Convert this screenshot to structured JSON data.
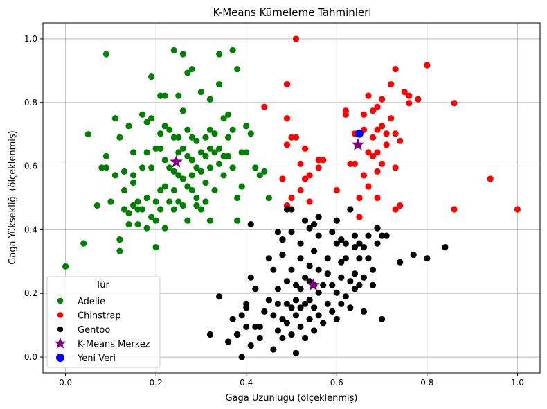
{
  "chart_data": {
    "type": "scatter",
    "title": "K-Means Kümeleme Tahminleri",
    "xlabel": "Gaga Uzunluğu (ölçeklenmiş)",
    "ylabel": "Gaga Yüksekliği (ölçeklenmiş)",
    "xlim": [
      -0.05,
      1.05
    ],
    "ylim": [
      -0.05,
      1.05
    ],
    "xticks": [
      "0.0",
      "0.2",
      "0.4",
      "0.6",
      "0.8",
      "1.0"
    ],
    "yticks": [
      "0.0",
      "0.2",
      "0.4",
      "0.6",
      "0.8",
      "1.0"
    ],
    "grid": true,
    "legend": {
      "title": "Tür",
      "placement": "lower-left"
    },
    "series": [
      {
        "name": "Adelie",
        "color": "#008000",
        "marker": "circle",
        "points": [
          [
            0.0,
            0.285
          ],
          [
            0.04,
            0.357
          ],
          [
            0.05,
            0.7
          ],
          [
            0.07,
            0.476
          ],
          [
            0.08,
            0.595
          ],
          [
            0.09,
            0.631
          ],
          [
            0.09,
            0.595
          ],
          [
            0.1,
            0.488
          ],
          [
            0.09,
            0.952
          ],
          [
            0.11,
            0.571
          ],
          [
            0.11,
            0.75
          ],
          [
            0.12,
            0.333
          ],
          [
            0.12,
            0.69
          ],
          [
            0.13,
            0.583
          ],
          [
            0.13,
            0.524
          ],
          [
            0.12,
            0.369
          ],
          [
            0.13,
            0.464
          ],
          [
            0.14,
            0.452
          ],
          [
            0.14,
            0.417
          ],
          [
            0.14,
            0.726
          ],
          [
            0.15,
            0.571
          ],
          [
            0.15,
            0.548
          ],
          [
            0.15,
            0.643
          ],
          [
            0.15,
            0.476
          ],
          [
            0.16,
            0.488
          ],
          [
            0.16,
            0.464
          ],
          [
            0.16,
            0.417
          ],
          [
            0.17,
            0.762
          ],
          [
            0.17,
            0.595
          ],
          [
            0.17,
            0.464
          ],
          [
            0.18,
            0.738
          ],
          [
            0.18,
            0.643
          ],
          [
            0.18,
            0.5
          ],
          [
            0.18,
            0.405
          ],
          [
            0.19,
            0.75
          ],
          [
            0.19,
            0.881
          ],
          [
            0.19,
            0.595
          ],
          [
            0.19,
            0.44
          ],
          [
            0.2,
            0.655
          ],
          [
            0.2,
            0.488
          ],
          [
            0.2,
            0.429
          ],
          [
            0.2,
            0.345
          ],
          [
            0.21,
            0.821
          ],
          [
            0.21,
            0.702
          ],
          [
            0.21,
            0.655
          ],
          [
            0.21,
            0.524
          ],
          [
            0.21,
            0.464
          ],
          [
            0.22,
            0.726
          ],
          [
            0.22,
            0.619
          ],
          [
            0.22,
            0.536
          ],
          [
            0.22,
            0.405
          ],
          [
            0.22,
            0.821
          ],
          [
            0.23,
            0.714
          ],
          [
            0.23,
            0.595
          ],
          [
            0.23,
            0.488
          ],
          [
            0.24,
            0.964
          ],
          [
            0.24,
            0.69
          ],
          [
            0.24,
            0.583
          ],
          [
            0.24,
            0.524
          ],
          [
            0.24,
            0.464
          ],
          [
            0.25,
            0.821
          ],
          [
            0.25,
            0.69
          ],
          [
            0.25,
            0.643
          ],
          [
            0.25,
            0.571
          ],
          [
            0.25,
            0.488
          ],
          [
            0.26,
            0.952
          ],
          [
            0.26,
            0.774
          ],
          [
            0.26,
            0.655
          ],
          [
            0.26,
            0.56
          ],
          [
            0.26,
            0.476
          ],
          [
            0.27,
            0.893
          ],
          [
            0.27,
            0.714
          ],
          [
            0.27,
            0.631
          ],
          [
            0.27,
            0.536
          ],
          [
            0.27,
            0.429
          ],
          [
            0.28,
            0.905
          ],
          [
            0.28,
            0.69
          ],
          [
            0.28,
            0.619
          ],
          [
            0.28,
            0.571
          ],
          [
            0.28,
            0.524
          ],
          [
            0.29,
            0.679
          ],
          [
            0.29,
            0.595
          ],
          [
            0.29,
            0.5
          ],
          [
            0.29,
            0.476
          ],
          [
            0.3,
            0.833
          ],
          [
            0.3,
            0.643
          ],
          [
            0.3,
            0.583
          ],
          [
            0.3,
            0.464
          ],
          [
            0.31,
            0.69
          ],
          [
            0.31,
            0.631
          ],
          [
            0.31,
            0.548
          ],
          [
            0.31,
            0.488
          ],
          [
            0.32,
            0.81
          ],
          [
            0.32,
            0.714
          ],
          [
            0.32,
            0.655
          ],
          [
            0.32,
            0.595
          ],
          [
            0.32,
            0.429
          ],
          [
            0.33,
            0.702
          ],
          [
            0.33,
            0.643
          ],
          [
            0.33,
            0.524
          ],
          [
            0.34,
            0.952
          ],
          [
            0.34,
            0.857
          ],
          [
            0.34,
            0.655
          ],
          [
            0.34,
            0.607
          ],
          [
            0.35,
            0.75
          ],
          [
            0.35,
            0.631
          ],
          [
            0.35,
            0.571
          ],
          [
            0.36,
            0.762
          ],
          [
            0.36,
            0.69
          ],
          [
            0.36,
            0.631
          ],
          [
            0.37,
            0.964
          ],
          [
            0.37,
            0.714
          ],
          [
            0.37,
            0.595
          ],
          [
            0.38,
            0.905
          ],
          [
            0.38,
            0.5
          ],
          [
            0.38,
            0.429
          ],
          [
            0.39,
            0.643
          ],
          [
            0.39,
            0.536
          ],
          [
            0.4,
            0.726
          ],
          [
            0.4,
            0.643
          ],
          [
            0.41,
            0.702
          ],
          [
            0.42,
            0.595
          ],
          [
            0.43,
            0.571
          ],
          [
            0.44,
            0.583
          ],
          [
            0.45,
            0.5
          ]
        ]
      },
      {
        "name": "Chinstrap",
        "color": "#ff0000",
        "marker": "circle",
        "points": [
          [
            0.44,
            0.786
          ],
          [
            0.48,
            0.56
          ],
          [
            0.49,
            0.667
          ],
          [
            0.49,
            0.476
          ],
          [
            0.49,
            0.75
          ],
          [
            0.49,
            0.857
          ],
          [
            0.5,
            0.69
          ],
          [
            0.5,
            0.5
          ],
          [
            0.51,
            1.0
          ],
          [
            0.51,
            0.69
          ],
          [
            0.52,
            0.607
          ],
          [
            0.52,
            0.524
          ],
          [
            0.53,
            0.655
          ],
          [
            0.53,
            0.56
          ],
          [
            0.54,
            0.571
          ],
          [
            0.54,
            0.488
          ],
          [
            0.56,
            0.595
          ],
          [
            0.57,
            0.619
          ],
          [
            0.6,
            0.524
          ],
          [
            0.62,
            0.762
          ],
          [
            0.62,
            0.774
          ],
          [
            0.63,
            0.607
          ],
          [
            0.64,
            0.702
          ],
          [
            0.64,
            0.607
          ],
          [
            0.65,
            0.5
          ],
          [
            0.65,
            0.44
          ],
          [
            0.66,
            0.714
          ],
          [
            0.66,
            0.762
          ],
          [
            0.66,
            0.571
          ],
          [
            0.67,
            0.821
          ],
          [
            0.67,
            0.643
          ],
          [
            0.68,
            0.631
          ],
          [
            0.68,
            0.69
          ],
          [
            0.68,
            0.774
          ],
          [
            0.69,
            0.786
          ],
          [
            0.69,
            0.714
          ],
          [
            0.69,
            0.643
          ],
          [
            0.69,
            0.583
          ],
          [
            0.69,
            0.5
          ],
          [
            0.7,
            0.81
          ],
          [
            0.7,
            0.726
          ],
          [
            0.7,
            0.607
          ],
          [
            0.71,
            0.702
          ],
          [
            0.71,
            0.667
          ],
          [
            0.72,
            0.857
          ],
          [
            0.72,
            0.75
          ],
          [
            0.73,
            0.905
          ],
          [
            0.73,
            0.702
          ],
          [
            0.73,
            0.595
          ],
          [
            0.73,
            0.464
          ],
          [
            0.74,
            0.679
          ],
          [
            0.74,
            0.476
          ],
          [
            0.75,
            0.833
          ],
          [
            0.76,
            0.798
          ],
          [
            0.76,
            0.821
          ],
          [
            0.78,
            0.81
          ],
          [
            0.8,
            0.917
          ],
          [
            0.86,
            0.798
          ],
          [
            0.86,
            0.464
          ],
          [
            0.94,
            0.56
          ],
          [
            1.0,
            0.464
          ],
          [
            0.56,
            0.619
          ],
          [
            0.67,
            0.536
          ]
        ]
      },
      {
        "name": "Gentoo",
        "color": "#000000",
        "marker": "circle",
        "points": [
          [
            0.32,
            0.071
          ],
          [
            0.34,
            0.19
          ],
          [
            0.36,
            0.048
          ],
          [
            0.37,
            0.119
          ],
          [
            0.38,
            0.071
          ],
          [
            0.38,
            0.071
          ],
          [
            0.39,
            0.131
          ],
          [
            0.39,
            0.0
          ],
          [
            0.4,
            0.167
          ],
          [
            0.4,
            0.095
          ],
          [
            0.4,
            0.155
          ],
          [
            0.41,
            0.036
          ],
          [
            0.41,
            0.417
          ],
          [
            0.41,
            0.25
          ],
          [
            0.42,
            0.095
          ],
          [
            0.42,
            0.214
          ],
          [
            0.43,
            0.095
          ],
          [
            0.43,
            0.06
          ],
          [
            0.44,
            0.143
          ],
          [
            0.45,
            0.179
          ],
          [
            0.45,
            0.31
          ],
          [
            0.46,
            0.274
          ],
          [
            0.46,
            0.131
          ],
          [
            0.46,
            0.024
          ],
          [
            0.47,
            0.214
          ],
          [
            0.47,
            0.167
          ],
          [
            0.47,
            0.083
          ],
          [
            0.47,
            0.393
          ],
          [
            0.48,
            0.369
          ],
          [
            0.48,
            0.321
          ],
          [
            0.48,
            0.119
          ],
          [
            0.48,
            0.06
          ],
          [
            0.49,
            0.464
          ],
          [
            0.49,
            0.238
          ],
          [
            0.49,
            0.167
          ],
          [
            0.49,
            0.107
          ],
          [
            0.5,
            0.464
          ],
          [
            0.5,
            0.393
          ],
          [
            0.5,
            0.274
          ],
          [
            0.5,
            0.155
          ],
          [
            0.5,
            0.071
          ],
          [
            0.51,
            0.226
          ],
          [
            0.51,
            0.179
          ],
          [
            0.51,
            0.131
          ],
          [
            0.51,
            0.012
          ],
          [
            0.52,
            0.357
          ],
          [
            0.52,
            0.31
          ],
          [
            0.52,
            0.214
          ],
          [
            0.52,
            0.155
          ],
          [
            0.52,
            0.095
          ],
          [
            0.53,
            0.429
          ],
          [
            0.53,
            0.25
          ],
          [
            0.53,
            0.167
          ],
          [
            0.53,
            0.06
          ],
          [
            0.54,
            0.405
          ],
          [
            0.54,
            0.286
          ],
          [
            0.54,
            0.238
          ],
          [
            0.54,
            0.179
          ],
          [
            0.54,
            0.119
          ],
          [
            0.55,
            0.417
          ],
          [
            0.55,
            0.333
          ],
          [
            0.55,
            0.226
          ],
          [
            0.55,
            0.155
          ],
          [
            0.55,
            0.083
          ],
          [
            0.56,
            0.44
          ],
          [
            0.56,
            0.381
          ],
          [
            0.56,
            0.274
          ],
          [
            0.56,
            0.202
          ],
          [
            0.56,
            0.131
          ],
          [
            0.57,
            0.226
          ],
          [
            0.57,
            0.107
          ],
          [
            0.58,
            0.31
          ],
          [
            0.58,
            0.262
          ],
          [
            0.58,
            0.167
          ],
          [
            0.59,
            0.393
          ],
          [
            0.59,
            0.226
          ],
          [
            0.59,
            0.143
          ],
          [
            0.6,
            0.357
          ],
          [
            0.6,
            0.202
          ],
          [
            0.6,
            0.119
          ],
          [
            0.61,
            0.369
          ],
          [
            0.61,
            0.298
          ],
          [
            0.61,
            0.25
          ],
          [
            0.61,
            0.167
          ],
          [
            0.62,
            0.357
          ],
          [
            0.62,
            0.31
          ],
          [
            0.63,
            0.238
          ],
          [
            0.63,
            0.155
          ],
          [
            0.64,
            0.381
          ],
          [
            0.64,
            0.345
          ],
          [
            0.64,
            0.262
          ],
          [
            0.64,
            0.214
          ],
          [
            0.65,
            0.357
          ],
          [
            0.65,
            0.31
          ],
          [
            0.65,
            0.226
          ],
          [
            0.66,
            0.345
          ],
          [
            0.66,
            0.25
          ],
          [
            0.66,
            0.143
          ],
          [
            0.67,
            0.381
          ],
          [
            0.67,
            0.31
          ],
          [
            0.68,
            0.274
          ],
          [
            0.68,
            0.226
          ],
          [
            0.69,
            0.405
          ],
          [
            0.69,
            0.357
          ],
          [
            0.7,
            0.381
          ],
          [
            0.7,
            0.119
          ],
          [
            0.71,
            0.381
          ],
          [
            0.74,
            0.298
          ],
          [
            0.77,
            0.321
          ],
          [
            0.8,
            0.31
          ],
          [
            0.84,
            0.345
          ],
          [
            0.6,
            0.429
          ],
          [
            0.63,
            0.464
          ],
          [
            0.62,
            0.19
          ]
        ]
      },
      {
        "name": "K-Means Merkez",
        "color": "#800080",
        "marker": "star",
        "points": [
          [
            0.245,
            0.613
          ],
          [
            0.548,
            0.226
          ],
          [
            0.647,
            0.667
          ]
        ]
      },
      {
        "name": "Yeni Veri",
        "color": "#0000ff",
        "marker": "circle-large",
        "points": [
          [
            0.65,
            0.702
          ]
        ]
      }
    ]
  }
}
